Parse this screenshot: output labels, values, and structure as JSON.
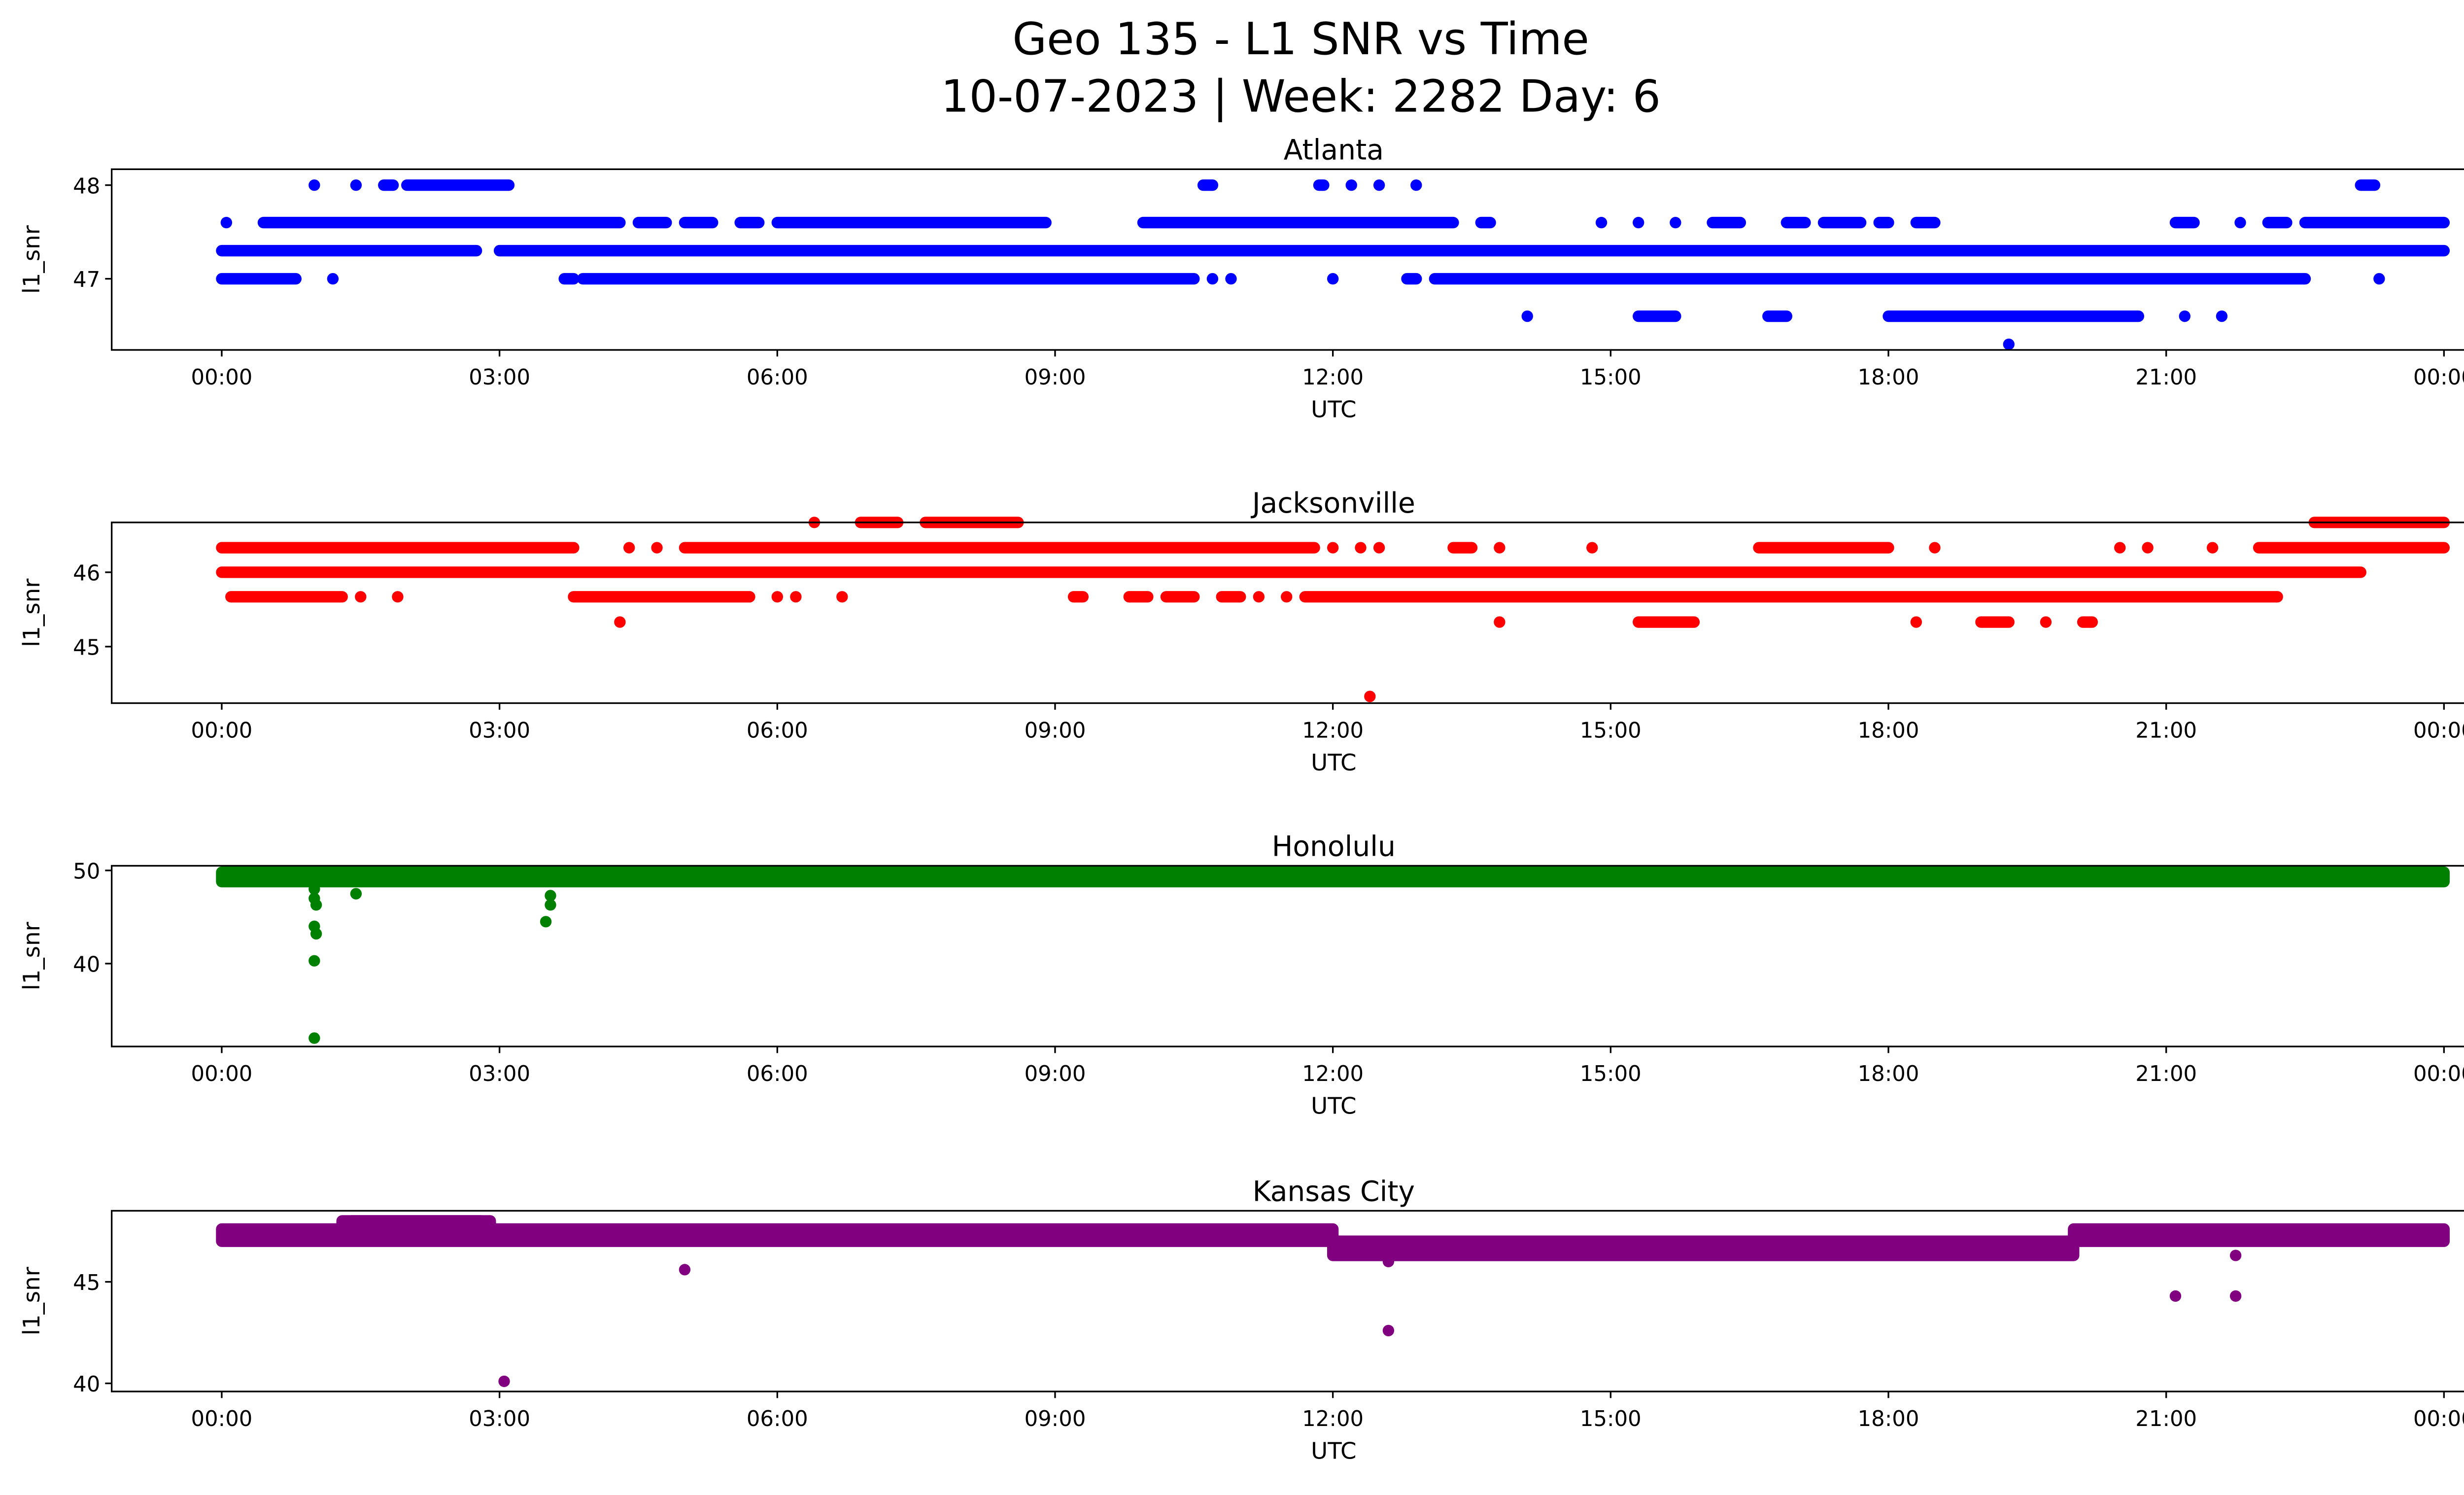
{
  "chart_data": {
    "type": "scatter",
    "title": "Geo 135 - L1 SNR vs Time",
    "subtitle": "10-07-2023 | Week: 2282 Day: 6",
    "x_tick_labels": [
      "00:00",
      "03:00",
      "06:00",
      "09:00",
      "12:00",
      "15:00",
      "18:00",
      "21:00",
      "00:00"
    ],
    "x_tick_hours": [
      0,
      3,
      6,
      9,
      12,
      15,
      18,
      21,
      24
    ],
    "xlim_hours": [
      -1.2,
      25.2
    ],
    "subplots": [
      {
        "title": "Atlanta",
        "xlabel": "UTC",
        "ylabel": "l1_snr",
        "color": "#0000ff",
        "ylim": [
          46.24,
          48.17
        ],
        "yticks": [
          47,
          48
        ],
        "ytick_labels": [
          "47",
          "48"
        ],
        "runs": [
          [
            47.3,
            0,
            2.75
          ],
          [
            47.3,
            3.0,
            24
          ],
          [
            47.6,
            0.05,
            0.05
          ],
          [
            47.6,
            0.45,
            4.3
          ],
          [
            47.6,
            4.5,
            4.8
          ],
          [
            47.6,
            5.0,
            5.3
          ],
          [
            47.6,
            5.6,
            5.8
          ],
          [
            47.6,
            6.0,
            8.9
          ],
          [
            47.6,
            9.95,
            13.3
          ],
          [
            47.6,
            13.6,
            13.7
          ],
          [
            47.6,
            14.9,
            14.9
          ],
          [
            47.6,
            15.3,
            15.3
          ],
          [
            47.6,
            15.7,
            15.7
          ],
          [
            47.6,
            16.1,
            16.4
          ],
          [
            47.6,
            16.9,
            17.1
          ],
          [
            47.6,
            17.3,
            17.7
          ],
          [
            47.6,
            17.9,
            18.0
          ],
          [
            47.6,
            18.3,
            18.5
          ],
          [
            47.6,
            21.1,
            21.3
          ],
          [
            47.6,
            21.8,
            21.8
          ],
          [
            47.6,
            22.1,
            22.3
          ],
          [
            47.6,
            22.5,
            24
          ],
          [
            47.0,
            0.0,
            0.8
          ],
          [
            47.0,
            1.2,
            1.2
          ],
          [
            47.0,
            3.7,
            3.8
          ],
          [
            47.0,
            3.9,
            10.5
          ],
          [
            47.0,
            10.7,
            10.7
          ],
          [
            47.0,
            10.9,
            10.9
          ],
          [
            47.0,
            12.0,
            12.0
          ],
          [
            47.0,
            12.8,
            12.9
          ],
          [
            47.0,
            13.1,
            22.5
          ],
          [
            47.0,
            23.3,
            23.3
          ],
          [
            48.0,
            1.0,
            1.0
          ],
          [
            48.0,
            1.45,
            1.45
          ],
          [
            48.0,
            1.75,
            1.85
          ],
          [
            48.0,
            2.0,
            3.1
          ],
          [
            48.0,
            10.6,
            10.7
          ],
          [
            48.0,
            11.85,
            11.9
          ],
          [
            48.0,
            12.2,
            12.2
          ],
          [
            48.0,
            12.5,
            12.5
          ],
          [
            48.0,
            12.9,
            12.9
          ],
          [
            48.0,
            23.1,
            23.25
          ],
          [
            46.6,
            14.1,
            14.1
          ],
          [
            46.6,
            15.3,
            15.7
          ],
          [
            46.6,
            16.7,
            16.9
          ],
          [
            46.6,
            18.0,
            20.7
          ],
          [
            46.6,
            21.2,
            21.2
          ],
          [
            46.6,
            21.6,
            21.6
          ],
          [
            46.3,
            19.3,
            19.3
          ]
        ],
        "bands": []
      },
      {
        "title": "Jacksonville",
        "xlabel": "UTC",
        "ylabel": "l1_snr",
        "color": "#ff0000",
        "ylim": [
          44.24,
          46.67
        ],
        "yticks": [
          45,
          46
        ],
        "ytick_labels": [
          "45",
          "46"
        ],
        "runs": [
          [
            46.33,
            0,
            3.8
          ],
          [
            46.33,
            4.4,
            4.4
          ],
          [
            46.33,
            4.7,
            4.7
          ],
          [
            46.33,
            5.0,
            11.8
          ],
          [
            46.33,
            12.0,
            12.0
          ],
          [
            46.33,
            12.3,
            12.3
          ],
          [
            46.33,
            12.5,
            12.5
          ],
          [
            46.33,
            13.3,
            13.5
          ],
          [
            46.33,
            13.8,
            13.8
          ],
          [
            46.33,
            14.8,
            14.8
          ],
          [
            46.33,
            16.6,
            18.0
          ],
          [
            46.33,
            18.5,
            18.5
          ],
          [
            46.33,
            20.5,
            20.5
          ],
          [
            46.33,
            20.8,
            20.8
          ],
          [
            46.33,
            21.5,
            21.5
          ],
          [
            46.33,
            22.0,
            24
          ],
          [
            46.0,
            0,
            23.1
          ],
          [
            45.67,
            0.1,
            1.3
          ],
          [
            45.67,
            1.5,
            1.5
          ],
          [
            45.67,
            1.9,
            1.9
          ],
          [
            45.67,
            3.8,
            5.7
          ],
          [
            45.67,
            6.0,
            6.0
          ],
          [
            45.67,
            6.2,
            6.2
          ],
          [
            45.67,
            6.7,
            6.7
          ],
          [
            45.67,
            9.2,
            9.3
          ],
          [
            45.67,
            9.8,
            10.0
          ],
          [
            45.67,
            10.2,
            10.5
          ],
          [
            45.67,
            10.8,
            11.0
          ],
          [
            45.67,
            11.2,
            11.2
          ],
          [
            45.67,
            11.5,
            11.5
          ],
          [
            45.67,
            11.7,
            22.2
          ],
          [
            45.33,
            4.3,
            4.3
          ],
          [
            45.33,
            13.8,
            13.8
          ],
          [
            45.33,
            15.3,
            15.9
          ],
          [
            45.33,
            18.3,
            18.3
          ],
          [
            45.33,
            19.0,
            19.3
          ],
          [
            45.33,
            19.7,
            19.7
          ],
          [
            45.33,
            20.1,
            20.2
          ],
          [
            46.67,
            6.4,
            6.4
          ],
          [
            46.67,
            6.9,
            7.3
          ],
          [
            46.67,
            7.6,
            8.6
          ],
          [
            46.67,
            22.6,
            24
          ],
          [
            44.33,
            12.4,
            12.4
          ]
        ],
        "bands": []
      },
      {
        "title": "Honolulu",
        "xlabel": "UTC",
        "ylabel": "l1_snr",
        "color": "#008000",
        "ylim": [
          31.1,
          50.5
        ],
        "yticks": [
          40,
          50
        ],
        "ytick_labels": [
          "40",
          "50"
        ],
        "runs": [
          [
            48,
            1.0,
            1.0
          ],
          [
            47,
            1.0,
            1.0
          ],
          [
            46.3,
            1.02,
            1.02
          ],
          [
            44,
            1.0,
            1.0
          ],
          [
            43.2,
            1.02,
            1.02
          ],
          [
            40.3,
            1.0,
            1.0
          ],
          [
            32,
            1.0,
            1.0
          ],
          [
            47.5,
            1.45,
            1.45
          ],
          [
            47.3,
            3.55,
            3.55
          ],
          [
            46.3,
            3.55,
            3.55
          ],
          [
            44.5,
            3.5,
            3.5
          ]
        ],
        "bands": [
          [
            0,
            24,
            48.8,
            49.8
          ]
        ]
      },
      {
        "title": "Kansas City",
        "xlabel": "UTC",
        "ylabel": "l1_snr",
        "color": "#800080",
        "ylim": [
          39.6,
          48.5
        ],
        "yticks": [
          40,
          45
        ],
        "ytick_labels": [
          "40",
          "45"
        ],
        "runs": [
          [
            40.1,
            3.05,
            3.05
          ],
          [
            45.6,
            5.0,
            5.0
          ],
          [
            42.6,
            12.6,
            12.6
          ],
          [
            46.0,
            12.6,
            12.6
          ],
          [
            44.3,
            21.1,
            21.1
          ],
          [
            44.3,
            21.75,
            21.75
          ],
          [
            46.3,
            21.75,
            21.75
          ],
          [
            48.0,
            1.4,
            2.8
          ]
        ],
        "bands": [
          [
            0,
            12,
            47.0,
            47.6
          ],
          [
            12,
            20,
            46.3,
            47.0
          ],
          [
            20,
            24,
            47.0,
            47.6
          ],
          [
            1.3,
            2.9,
            47.3,
            48.0
          ]
        ]
      }
    ]
  }
}
